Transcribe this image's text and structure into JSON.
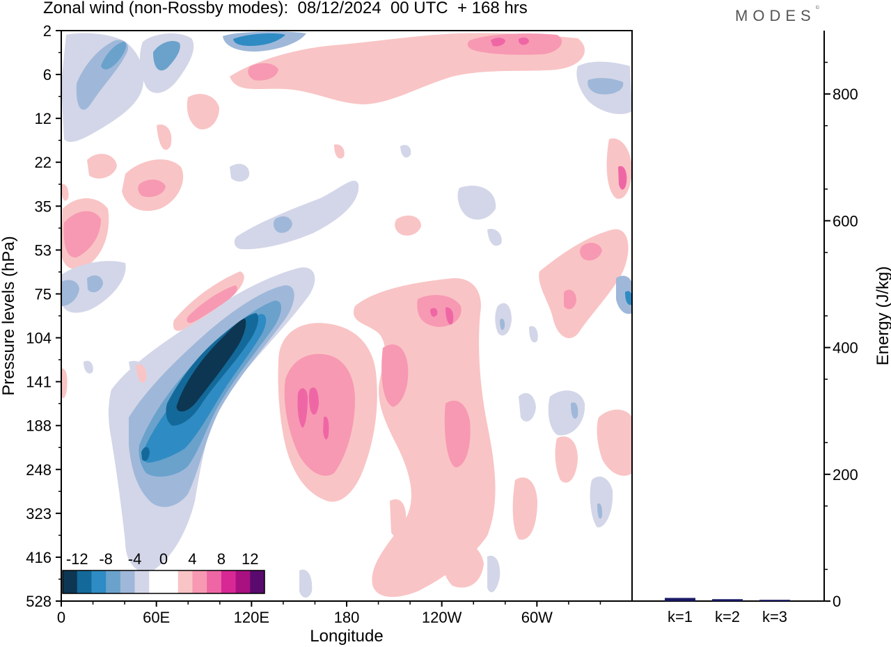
{
  "header": {
    "title": "Zonal wind (non-Rossby modes):  08/12/2024  00 UTC  + 168 hrs",
    "logo_text": "MODES",
    "logo_mark": "©"
  },
  "chart_data": [
    {
      "type": "heatmap",
      "title": "Zonal wind (non-Rossby modes):  08/12/2024  00 UTC  + 168 hrs",
      "xlabel": "Longitude",
      "ylabel": "Pressure levels (hPa)",
      "x_ticks": [
        "0",
        "60E",
        "120E",
        "180",
        "120W",
        "60W"
      ],
      "x_tick_degrees": [
        0,
        60,
        120,
        180,
        240,
        300
      ],
      "xlim": [
        0,
        360
      ],
      "y_ticks": [
        "2",
        "6",
        "12",
        "22",
        "35",
        "53",
        "75",
        "104",
        "141",
        "188",
        "248",
        "323",
        "416",
        "528"
      ],
      "y_scale": "categorical-levels, top to bottom",
      "colorbar": {
        "labels": [
          "-12",
          "-8",
          "-4",
          "0",
          "4",
          "8",
          "12"
        ],
        "colors": [
          "#0d3652",
          "#136a9a",
          "#2f8bc3",
          "#6aa2cc",
          "#9fb8d9",
          "#d3d6e8",
          "#ffffff",
          "#ffffff",
          "#f9c4c5",
          "#f799b3",
          "#ef66a5",
          "#d72894",
          "#a91080",
          "#5a0a6d"
        ],
        "placement": "bottom-left"
      },
      "features": [
        {
          "sign": "negative",
          "min_value": -14,
          "lon_center": 85,
          "level_center": "141",
          "description_level": "strong"
        },
        {
          "sign": "negative",
          "min_value": -6,
          "lon_center": 35,
          "level_center": "6"
        },
        {
          "sign": "negative",
          "min_value": -6,
          "lon_center": 120,
          "level_center": "2"
        },
        {
          "sign": "positive",
          "max_value": 8,
          "lon_center": 150,
          "level_center": "141"
        },
        {
          "sign": "positive",
          "max_value": 8,
          "lon_center": 238,
          "level_center": "75"
        },
        {
          "sign": "positive",
          "max_value": 8,
          "lon_center": 280,
          "level_center": "2"
        },
        {
          "sign": "positive",
          "max_value": 6,
          "lon_center": 10,
          "level_center": "53"
        }
      ]
    },
    {
      "type": "bar",
      "ylabel": "Energy (J/kg)",
      "categories": [
        "k=1",
        "k=2",
        "k=3"
      ],
      "values": [
        5,
        3,
        2
      ],
      "ylim": [
        0,
        900
      ],
      "y_ticks": [
        "0",
        "200",
        "400",
        "600",
        "800"
      ],
      "bar_color": "#1a1a66"
    }
  ]
}
